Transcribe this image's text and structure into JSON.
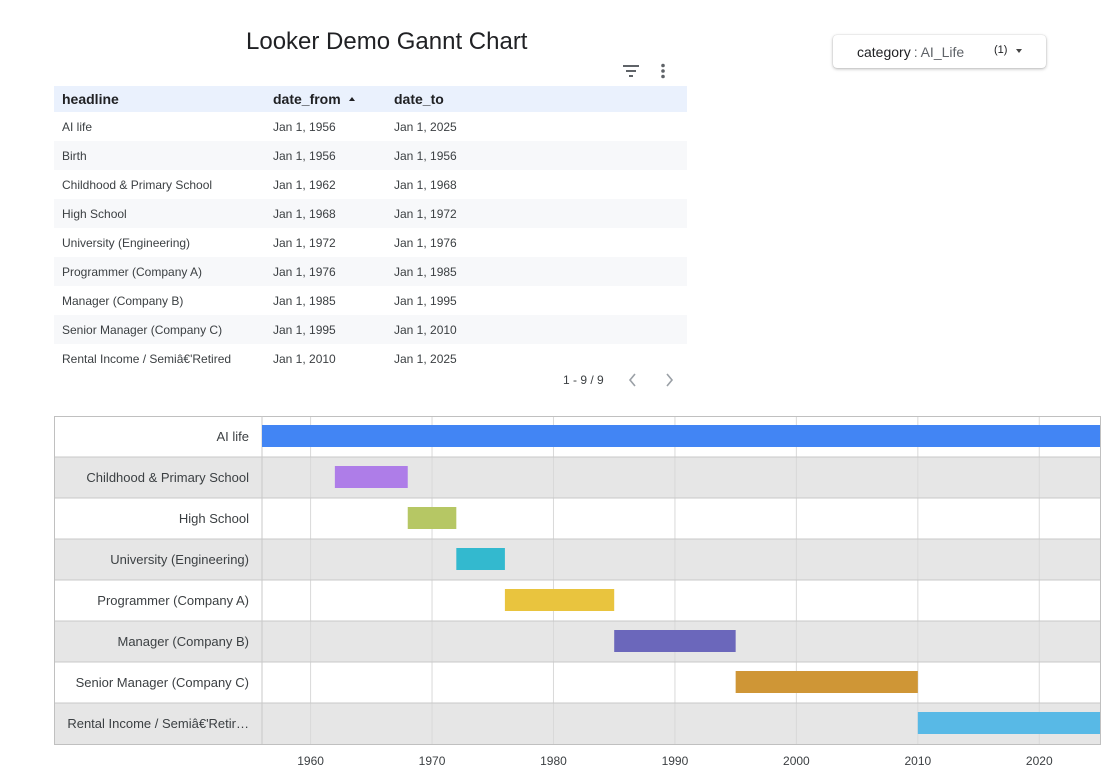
{
  "title": "Looker Demo Gannt Chart",
  "filter": {
    "key": "category",
    "value": "AI_Life",
    "count": "(1)"
  },
  "icons": {
    "filter": "filter-list-icon",
    "more": "more-vert-icon",
    "prev": "chevron-left-icon",
    "next": "chevron-right-icon",
    "dropdown": "caret-down-icon"
  },
  "table": {
    "headers": [
      "headline",
      "date_from",
      "date_to"
    ],
    "rows": [
      [
        "AI life",
        "Jan 1, 1956",
        "Jan 1, 2025"
      ],
      [
        "Birth",
        "Jan 1, 1956",
        "Jan 1, 1956"
      ],
      [
        "Childhood & Primary School",
        "Jan 1, 1962",
        "Jan 1, 1968"
      ],
      [
        "High School",
        "Jan 1, 1968",
        "Jan 1, 1972"
      ],
      [
        "University (Engineering)",
        "Jan 1, 1972",
        "Jan 1, 1976"
      ],
      [
        "Programmer (Company A)",
        "Jan 1, 1976",
        "Jan 1, 1985"
      ],
      [
        "Manager (Company B)",
        "Jan 1, 1985",
        "Jan 1, 1995"
      ],
      [
        "Senior Manager (Company C)",
        "Jan 1, 1995",
        "Jan 1, 2010"
      ],
      [
        "Rental Income / Semiâ€'Retired",
        "Jan 1, 2010",
        "Jan 1, 2025"
      ]
    ]
  },
  "pagination": "1 - 9 / 9",
  "chart_data": {
    "type": "bar",
    "orientation": "horizontal-timeline",
    "xlim": [
      1956,
      2025
    ],
    "xticks": [
      1960,
      1970,
      1980,
      1990,
      2000,
      2010,
      2020
    ],
    "grid": true,
    "series": [
      {
        "label": "AI life",
        "start": 1956,
        "end": 2025,
        "color": "#4285f4"
      },
      {
        "label": "Childhood & Primary School",
        "start": 1962,
        "end": 1968,
        "color": "#ae7de8"
      },
      {
        "label": "High School",
        "start": 1968,
        "end": 1972,
        "color": "#b6c764"
      },
      {
        "label": "University (Engineering)",
        "start": 1972,
        "end": 1976,
        "color": "#33b9cf"
      },
      {
        "label": "Programmer (Company A)",
        "start": 1976,
        "end": 1985,
        "color": "#e9c43e"
      },
      {
        "label": "Manager (Company B)",
        "start": 1985,
        "end": 1995,
        "color": "#6b67bb"
      },
      {
        "label": "Senior Manager (Company C)",
        "start": 1995,
        "end": 2010,
        "color": "#cf9636"
      },
      {
        "label": "Rental Income / Semiâ€'Retir…",
        "start": 2010,
        "end": 2025,
        "color": "#58b9e6"
      }
    ]
  }
}
